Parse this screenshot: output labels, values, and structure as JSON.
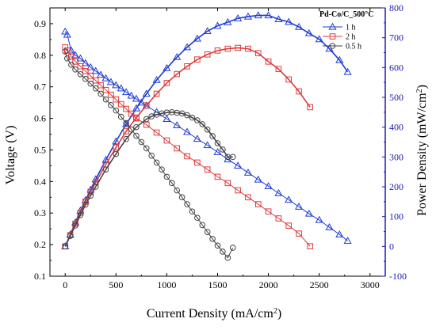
{
  "chart_data": {
    "type": "line",
    "legend_title": "Pd-Co/C_500°C",
    "legend_position": "top-right",
    "grid": false,
    "x_axis": {
      "label": "Current Density (mA/cm",
      "label_sup": "2",
      "label_end": ")",
      "range": [
        -150,
        3150
      ],
      "ticks": [
        0,
        500,
        1000,
        1500,
        2000,
        2500,
        3000
      ]
    },
    "y_left": {
      "label": "Voltage (V)",
      "range": [
        0.1,
        0.95
      ],
      "ticks": [
        0.1,
        0.2,
        0.3,
        0.4,
        0.5,
        0.6,
        0.7,
        0.8,
        0.9
      ]
    },
    "y_right": {
      "label": "Power Density (mW/cm",
      "label_sup": "2",
      "label_end": ")",
      "range": [
        -100,
        800
      ],
      "ticks": [
        -100,
        0,
        100,
        200,
        300,
        400,
        500,
        600,
        700,
        800
      ],
      "color": "#1a1ab8"
    },
    "series": [
      {
        "name": "1 h",
        "color": "#1f3bd6",
        "marker": "triangle",
        "voltage": {
          "x": [
            0,
            20,
            60,
            100,
            150,
            200,
            250,
            300,
            350,
            400,
            450,
            500,
            550,
            600,
            650,
            700,
            750,
            800,
            900,
            1000,
            1100,
            1200,
            1300,
            1400,
            1500,
            1600,
            1700,
            1800,
            1900,
            2000,
            2100,
            2200,
            2300,
            2400,
            2500,
            2600,
            2700,
            2780
          ],
          "y": [
            0.875,
            0.865,
            0.815,
            0.8,
            0.79,
            0.775,
            0.762,
            0.75,
            0.738,
            0.727,
            0.715,
            0.705,
            0.695,
            0.683,
            0.672,
            0.662,
            0.65,
            0.64,
            0.62,
            0.598,
            0.578,
            0.557,
            0.535,
            0.515,
            0.493,
            0.47,
            0.45,
            0.428,
            0.406,
            0.385,
            0.363,
            0.342,
            0.32,
            0.298,
            0.278,
            0.255,
            0.232,
            0.212
          ]
        },
        "power": {
          "x": [
            0,
            50,
            100,
            150,
            200,
            250,
            300,
            400,
            500,
            600,
            700,
            800,
            900,
            1000,
            1100,
            1200,
            1300,
            1400,
            1500,
            1600,
            1700,
            1800,
            1900,
            2000,
            2100,
            2200,
            2300,
            2400,
            2500,
            2600,
            2700,
            2780
          ],
          "y": [
            0,
            40,
            80,
            120,
            155,
            190,
            225,
            290,
            352,
            410,
            463,
            512,
            558,
            598,
            635,
            668,
            697,
            722,
            740,
            752,
            765,
            771,
            775,
            775,
            762,
            753,
            736,
            715,
            695,
            663,
            625,
            585
          ]
        }
      },
      {
        "name": "2 h",
        "color": "#e03a3a",
        "marker": "square",
        "voltage": {
          "x": [
            0,
            20,
            60,
            100,
            150,
            200,
            250,
            300,
            350,
            400,
            450,
            500,
            550,
            600,
            650,
            700,
            800,
            900,
            1000,
            1100,
            1200,
            1300,
            1400,
            1500,
            1600,
            1700,
            1800,
            1900,
            2000,
            2100,
            2200,
            2300,
            2410
          ],
          "y": [
            0.825,
            0.815,
            0.795,
            0.78,
            0.765,
            0.75,
            0.735,
            0.72,
            0.705,
            0.69,
            0.675,
            0.66,
            0.645,
            0.63,
            0.615,
            0.6,
            0.58,
            0.555,
            0.53,
            0.505,
            0.48,
            0.46,
            0.438,
            0.415,
            0.395,
            0.372,
            0.35,
            0.328,
            0.305,
            0.283,
            0.26,
            0.235,
            0.195
          ]
        },
        "power": {
          "x": [
            0,
            50,
            100,
            150,
            200,
            250,
            300,
            400,
            500,
            600,
            700,
            800,
            900,
            1000,
            1100,
            1200,
            1300,
            1400,
            1500,
            1600,
            1700,
            1800,
            1900,
            2000,
            2100,
            2200,
            2300,
            2410
          ],
          "y": [
            0,
            38,
            76,
            113,
            150,
            183,
            215,
            275,
            332,
            386,
            432,
            473,
            512,
            548,
            578,
            604,
            627,
            644,
            657,
            663,
            666,
            663,
            648,
            620,
            595,
            560,
            520,
            467
          ]
        }
      },
      {
        "name": "0.5 h",
        "color": "#444444",
        "marker": "circle",
        "voltage": {
          "x": [
            0,
            20,
            60,
            100,
            150,
            200,
            250,
            300,
            350,
            400,
            450,
            500,
            550,
            600,
            650,
            700,
            750,
            800,
            850,
            900,
            950,
            1000,
            1050,
            1100,
            1150,
            1200,
            1250,
            1300,
            1350,
            1400,
            1450,
            1500,
            1550,
            1600,
            1650
          ],
          "y": [
            0.812,
            0.79,
            0.77,
            0.755,
            0.74,
            0.725,
            0.71,
            0.695,
            0.678,
            0.66,
            0.642,
            0.625,
            0.605,
            0.585,
            0.565,
            0.545,
            0.525,
            0.505,
            0.482,
            0.46,
            0.438,
            0.415,
            0.395,
            0.372,
            0.35,
            0.328,
            0.305,
            0.285,
            0.262,
            0.24,
            0.218,
            0.197,
            0.178,
            0.158,
            0.19
          ]
        },
        "power": {
          "x": [
            0,
            50,
            100,
            150,
            200,
            250,
            300,
            400,
            500,
            600,
            700,
            800,
            850,
            900,
            950,
            1000,
            1050,
            1100,
            1150,
            1200,
            1250,
            1300,
            1350,
            1400,
            1450,
            1500,
            1550,
            1600,
            1650
          ],
          "y": [
            0,
            35,
            70,
            105,
            140,
            170,
            200,
            258,
            310,
            360,
            400,
            427,
            436,
            442,
            446,
            449,
            450,
            448,
            446,
            440,
            432,
            423,
            410,
            392,
            370,
            346,
            325,
            300,
            300
          ]
        }
      }
    ]
  }
}
